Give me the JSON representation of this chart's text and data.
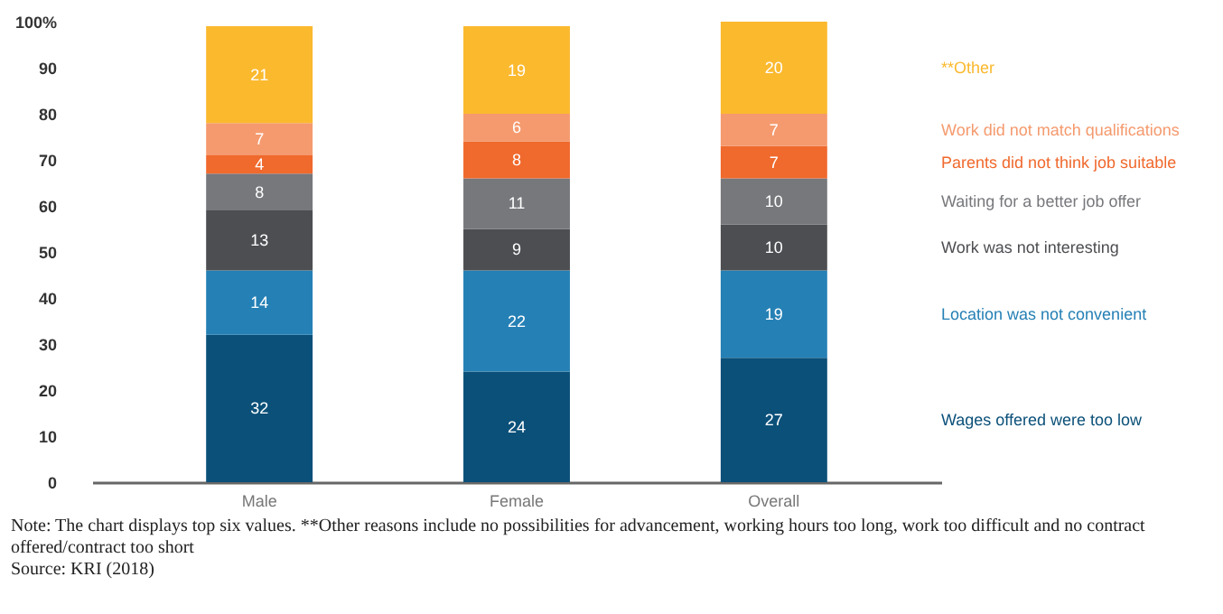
{
  "chart_data": {
    "type": "bar",
    "stacked": true,
    "categories": [
      "Male",
      "Female",
      "Overall"
    ],
    "series": [
      {
        "name": "Wages offered were too low",
        "color": "#0b5079",
        "values": [
          32,
          24,
          27
        ]
      },
      {
        "name": "Location was not convenient",
        "color": "#2580b5",
        "values": [
          14,
          22,
          19
        ]
      },
      {
        "name": "Work was not interesting",
        "color": "#4d4e52",
        "values": [
          13,
          9,
          10
        ]
      },
      {
        "name": "Waiting for a better job offer",
        "color": "#77787c",
        "values": [
          8,
          11,
          10
        ]
      },
      {
        "name": "Parents did not think job suitable",
        "color": "#f0692d",
        "values": [
          4,
          8,
          7
        ]
      },
      {
        "name": "Work did not match qualifications",
        "color": "#f59a6e",
        "values": [
          7,
          6,
          7
        ]
      },
      {
        "name": "**Other",
        "color": "#fbb92e",
        "values": [
          21,
          19,
          20
        ]
      }
    ],
    "ylim": [
      0,
      100
    ],
    "yticks": [
      0,
      10,
      20,
      30,
      40,
      50,
      60,
      70,
      80,
      90,
      {
        "value": 100,
        "label": "100%"
      }
    ],
    "data_labels": true,
    "legend": "right",
    "grid": false,
    "annotations": [
      "Note: The chart displays top six values. **Other reasons include no possibilities for advancement, working hours too long, work too difficult and no contract offered/contract too short",
      "Source: KRI (2018)"
    ]
  }
}
